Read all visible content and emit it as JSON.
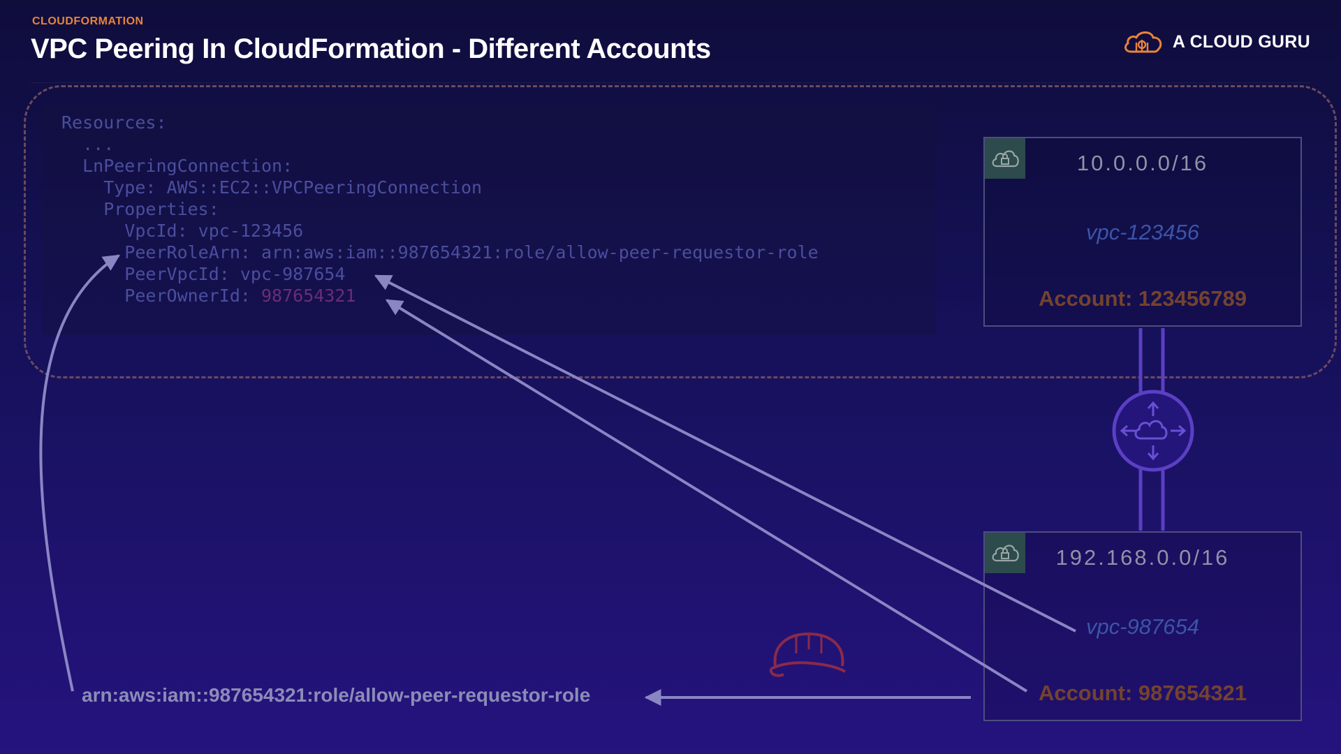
{
  "header": {
    "kicker": "CLOUDFORMATION",
    "title": "VPC Peering In CloudFormation - Different Accounts",
    "brand": "A CLOUD GURU",
    "brand_icon": "cloud-logo-icon"
  },
  "code": {
    "lines": [
      "Resources:",
      "  ...",
      "  LnPeeringConnection:",
      "    Type: AWS::EC2::VPCPeeringConnection",
      "    Properties:",
      "      VpcId: vpc-123456",
      "      PeerRoleArn: arn:aws:iam::987654321:role/allow-peer-requestor-role",
      "      PeerVpcId: vpc-987654",
      "      PeerOwnerId: "
    ],
    "peer_owner_value": "987654321"
  },
  "vpc_a": {
    "cidr": "10.0.0.0/16",
    "vpc_id": "vpc-123456",
    "account": "Account: 123456789",
    "icon": "vpc-lock-cloud-icon"
  },
  "vpc_b": {
    "cidr": "192.168.0.0/16",
    "vpc_id": "vpc-987654",
    "account": "Account: 987654321",
    "icon": "vpc-lock-cloud-icon"
  },
  "peering": {
    "icon": "peering-connection-icon"
  },
  "iam_role": {
    "arn": "arn:aws:iam::987654321:role/allow-peer-requestor-role",
    "icon": "iam-role-hardhat-icon"
  },
  "colors": {
    "background": "#16115a",
    "accent_orange": "#e8843a",
    "boundary": "#6b4a5e",
    "code": "#4a4e9e",
    "vpc_id": "#3b55a8",
    "account": "#74432e",
    "arrow": "#8a86c4",
    "peering": "#5b3fc4"
  }
}
